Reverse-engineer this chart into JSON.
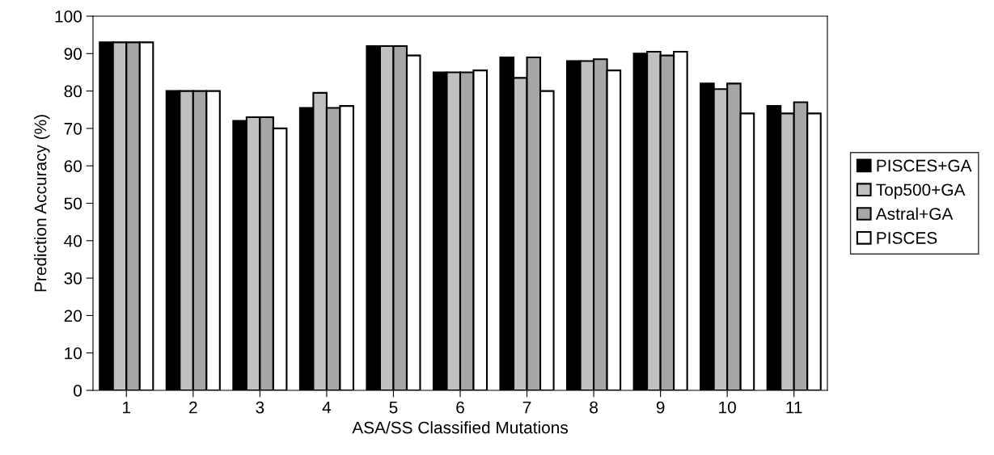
{
  "chart_data": {
    "type": "bar",
    "xlabel": "ASA/SS Classified Mutations",
    "ylabel": "Prediction Accuracy (%)",
    "categories": [
      "1",
      "2",
      "3",
      "4",
      "5",
      "6",
      "7",
      "8",
      "9",
      "10",
      "11"
    ],
    "series": [
      {
        "name": "PISCES+GA",
        "color": "#000000",
        "values": [
          93,
          80,
          72,
          75.5,
          92,
          85,
          89,
          88,
          90,
          82,
          76
        ]
      },
      {
        "name": "Top500+GA",
        "color": "#c0c0c0",
        "values": [
          93,
          80,
          73,
          79.5,
          92,
          85,
          83.5,
          88,
          90.5,
          80.5,
          74
        ]
      },
      {
        "name": "Astral+GA",
        "color": "#a6a6a6",
        "values": [
          93,
          80,
          73,
          75.5,
          92,
          85,
          89,
          88.5,
          89.5,
          82,
          77
        ]
      },
      {
        "name": "PISCES",
        "color": "#ffffff",
        "values": [
          93,
          80,
          70,
          76,
          89.5,
          85.5,
          80,
          85.5,
          90.5,
          74,
          74
        ]
      }
    ],
    "ylim": [
      0,
      100
    ],
    "yticks": [
      0,
      10,
      20,
      30,
      40,
      50,
      60,
      70,
      80,
      90,
      100
    ],
    "grid": false,
    "legend": "right"
  }
}
